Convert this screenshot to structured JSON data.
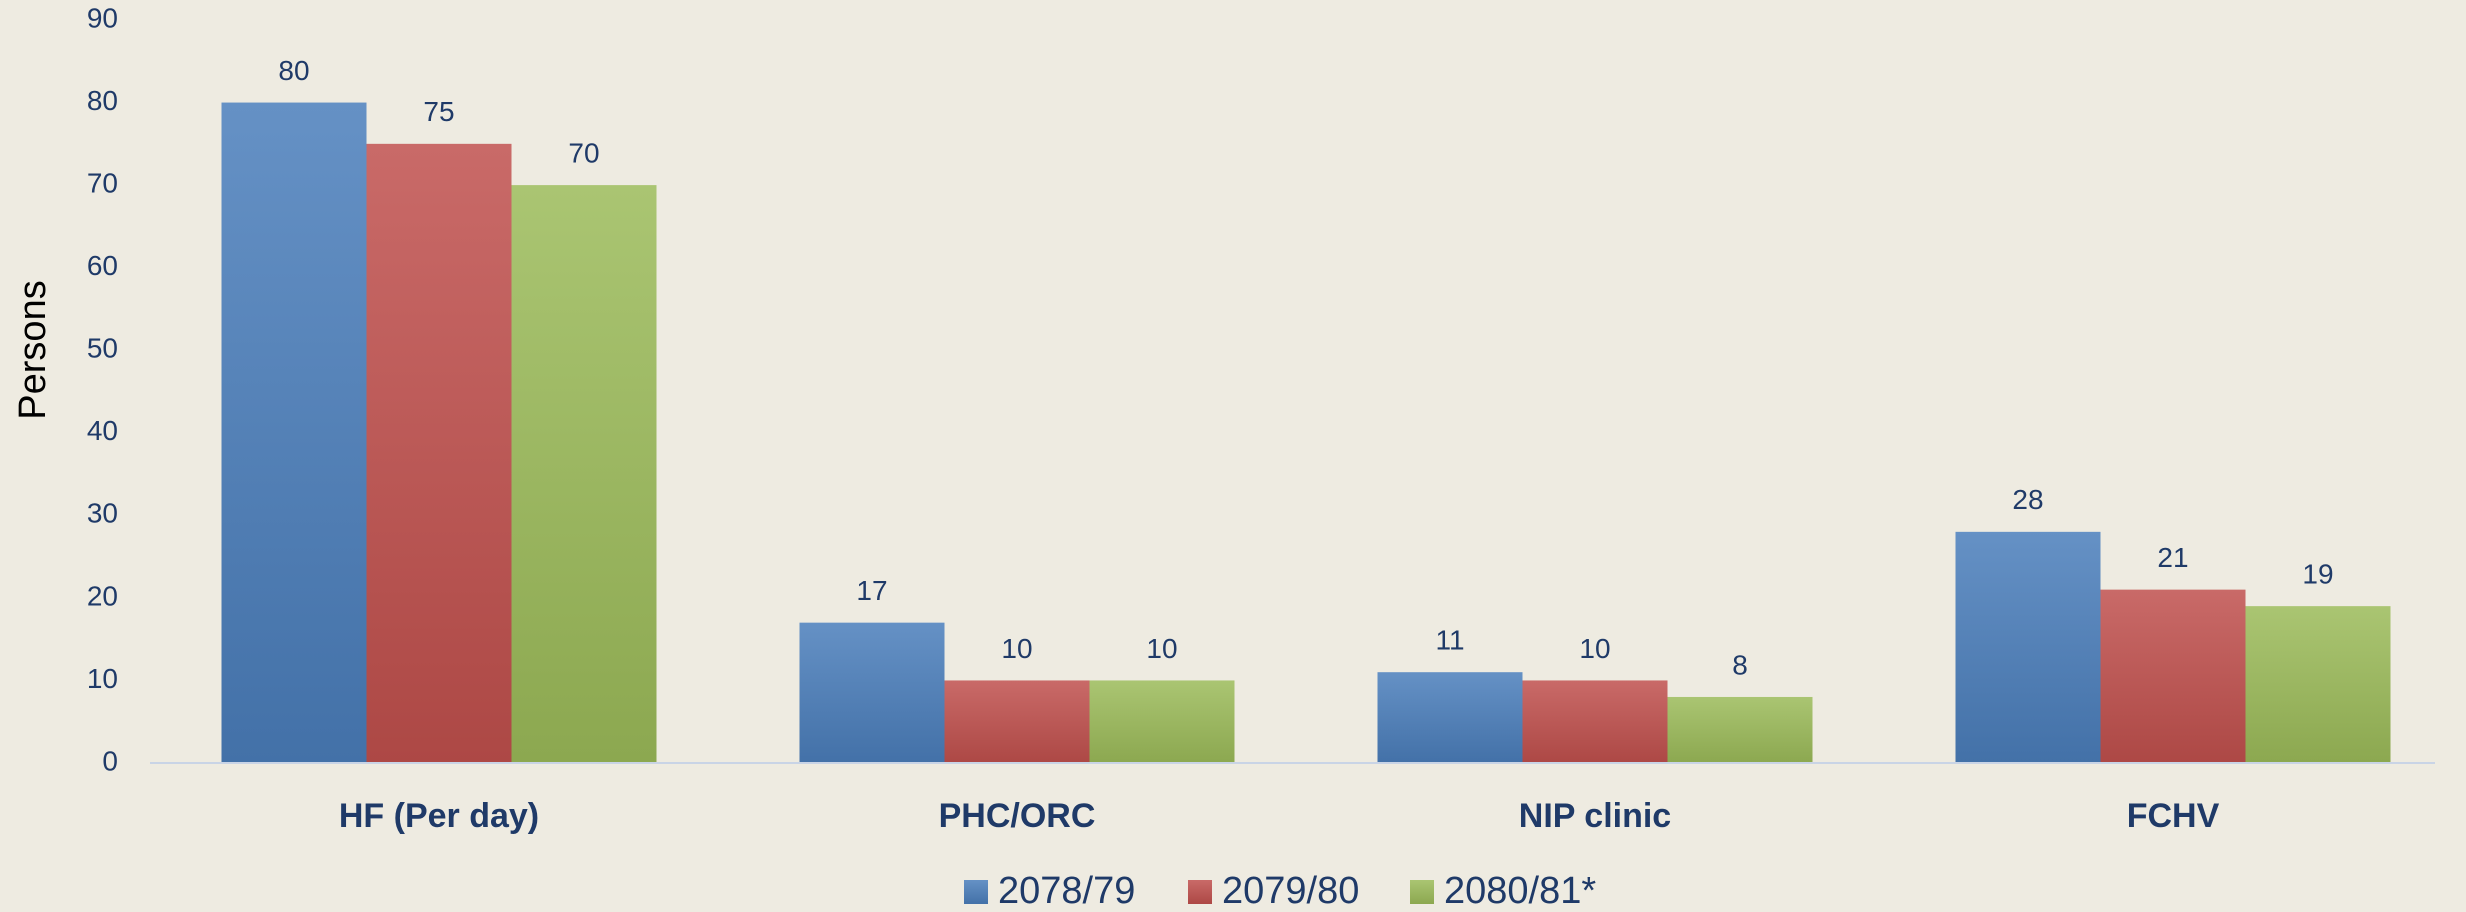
{
  "chart_data": {
    "type": "bar",
    "y_label": "Persons",
    "categories": [
      "HF (Per day)",
      "PHC/ORC",
      "NIP clinic",
      "FCHV"
    ],
    "series": [
      {
        "name": "2078/79",
        "color": "#4a7ebb",
        "values": [
          80,
          17,
          11,
          28
        ]
      },
      {
        "name": "2079/80",
        "color": "#c0504d",
        "values": [
          75,
          10,
          10,
          21
        ]
      },
      {
        "name": "2080/81*",
        "color": "#9bbb59",
        "values": [
          70,
          10,
          8,
          19
        ]
      }
    ],
    "ylim": [
      0,
      90
    ],
    "yticks": [
      0,
      10,
      20,
      30,
      40,
      50,
      60,
      70,
      80,
      90
    ],
    "grid": false,
    "legend": "bottom"
  }
}
